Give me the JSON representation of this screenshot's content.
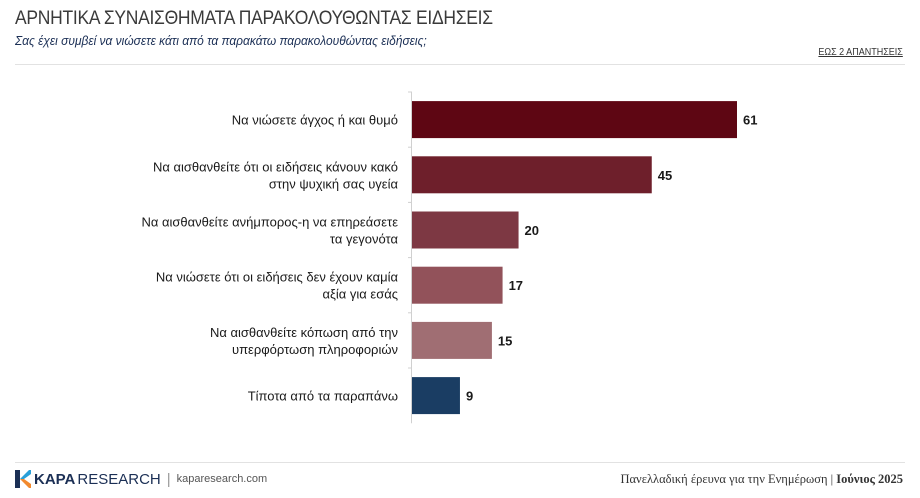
{
  "header": {
    "title": "ΑΡΝΗΤΙΚΑ ΣΥΝΑΙΣΘΗΜΑΤΑ ΠΑΡΑΚΟΛΟΥΘΩΝΤΑΣ ΕΙΔΗΣΕΙΣ",
    "subtitle": "Σας έχει συμβεί να νιώσετε κάτι από τα παρακάτω παρακολουθώντας ειδήσεις;",
    "note": "ΕΩΣ 2 ΑΠΑΝΤΗΣΕΙΣ"
  },
  "chart_data": {
    "type": "bar",
    "orientation": "horizontal",
    "categories": [
      [
        "Να νιώσετε άγχος ή και θυμό"
      ],
      [
        "Να αισθανθείτε ότι οι ειδήσεις κάνουν κακό",
        "στην ψυχική σας υγεία"
      ],
      [
        "Να αισθανθείτε ανήμπορος-η να επηρεάσετε",
        "τα γεγονότα"
      ],
      [
        "Να νιώσετε ότι οι ειδήσεις δεν έχουν καμία",
        "αξία για εσάς"
      ],
      [
        "Να αισθανθείτε κόπωση από την",
        "υπερφόρτωση πληροφοριών"
      ],
      [
        "Τίποτα από τα παραπάνω"
      ]
    ],
    "values": [
      61,
      45,
      20,
      17,
      15,
      9
    ],
    "colors": [
      "#5e0613",
      "#6e1f2b",
      "#7d3843",
      "#92525a",
      "#a06e73",
      "#1a3d63"
    ],
    "xlim": [
      0,
      61
    ],
    "grid": false,
    "legend": "none"
  },
  "footer": {
    "brand_bold": "KAPA",
    "brand_rest": "RESEARCH",
    "site": "kaparesearch.com",
    "survey": "Πανελλαδική έρευνα για την Ενημέρωση",
    "date": "Ιούνιος 2025"
  }
}
